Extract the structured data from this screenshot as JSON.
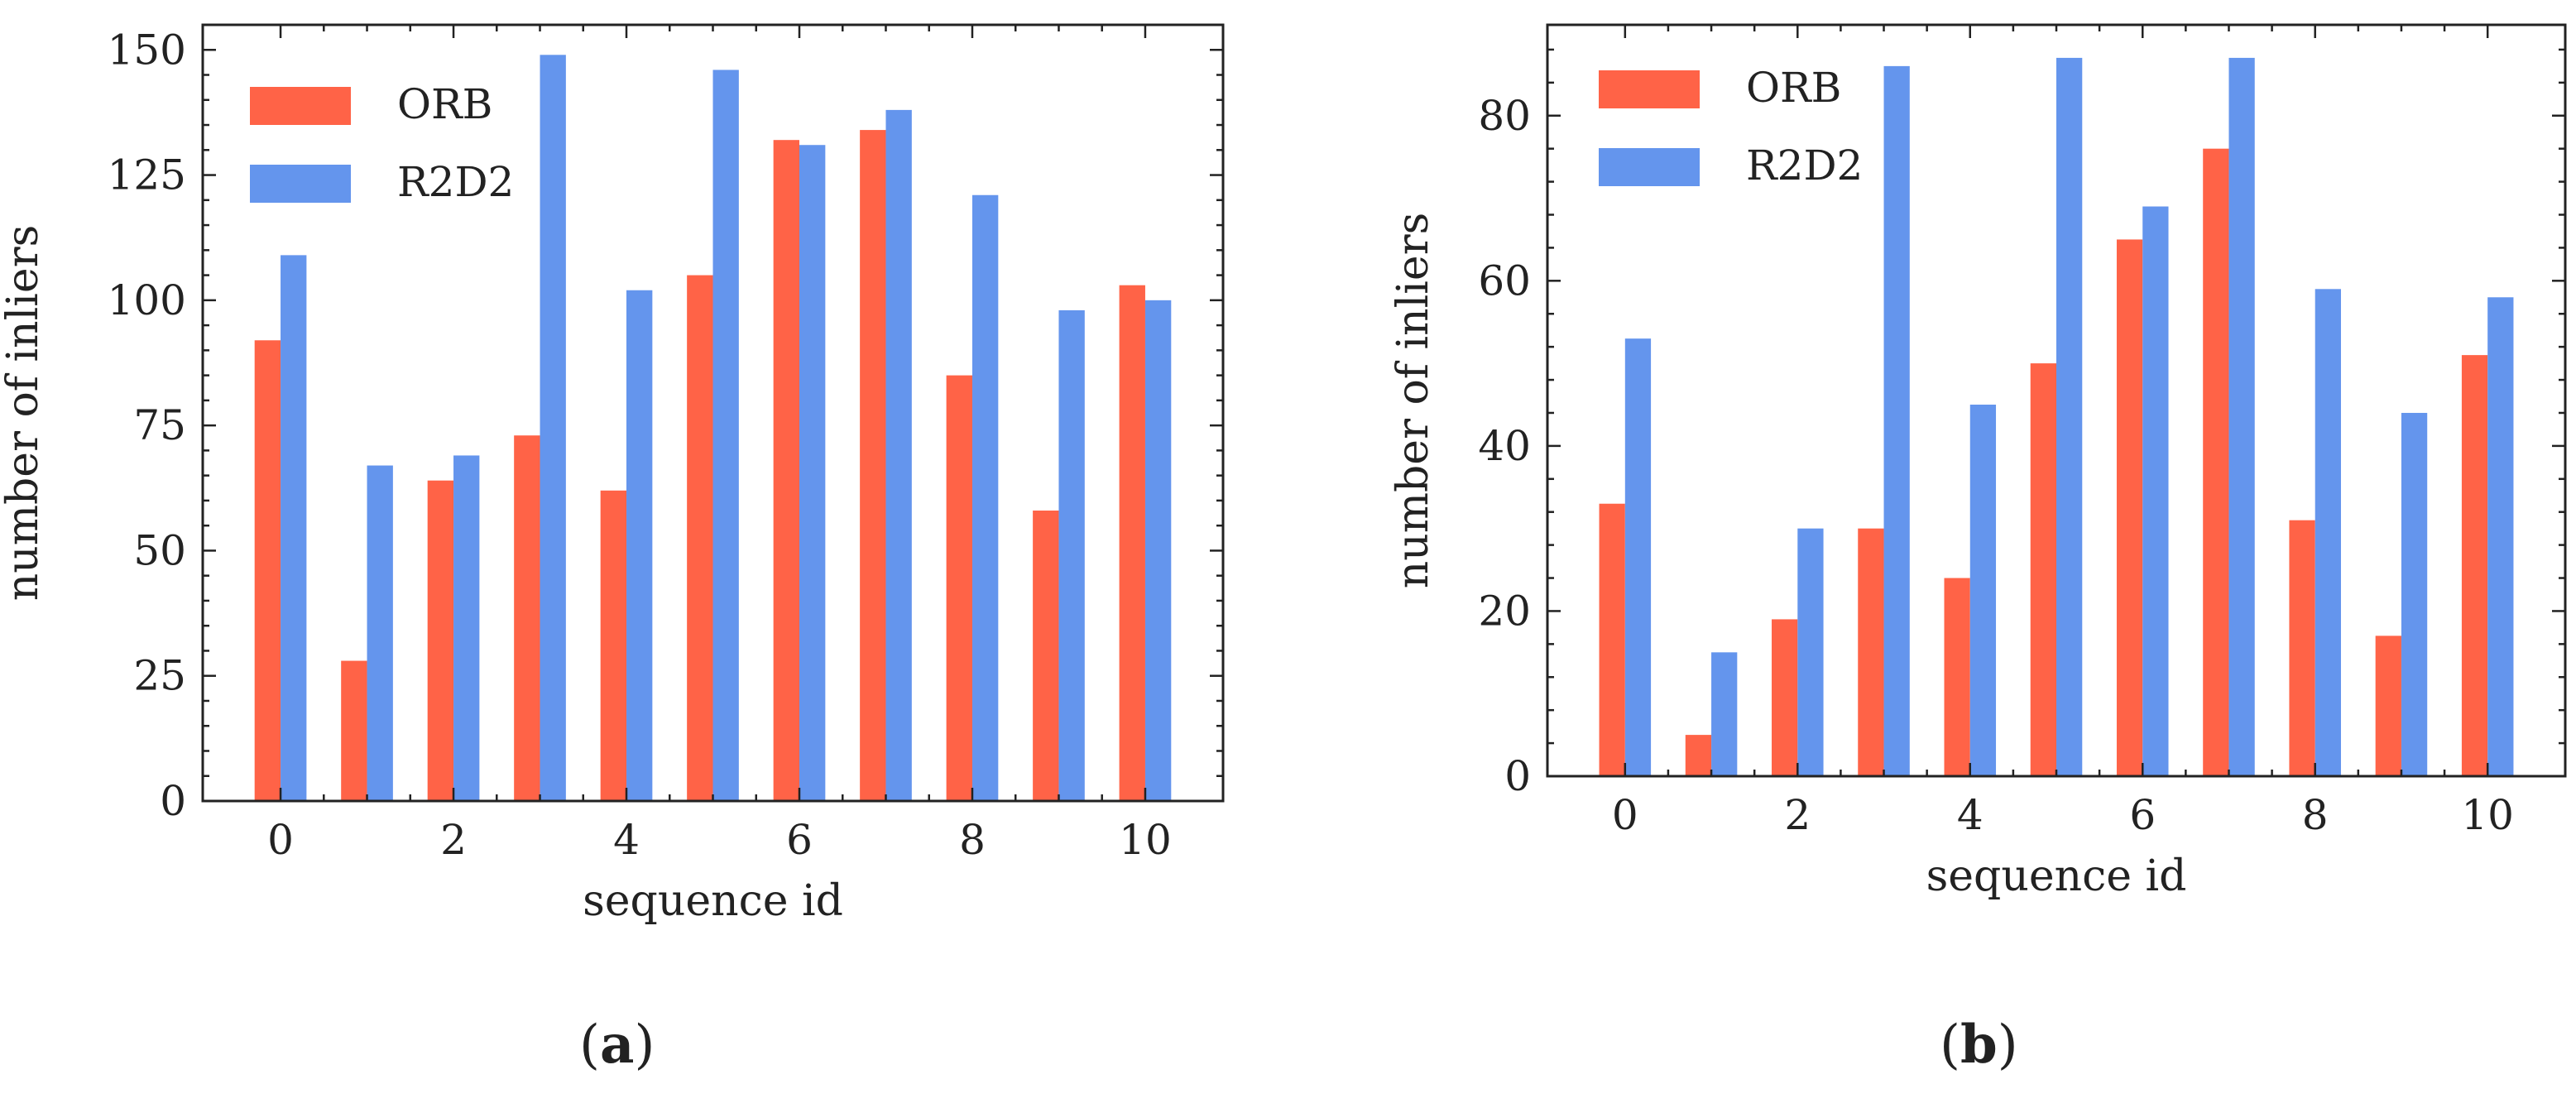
{
  "chart_data": [
    {
      "type": "bar",
      "panel_label": "a",
      "title": "",
      "xlabel": "sequence id",
      "ylabel": "number of inliers",
      "x": [
        0,
        1,
        2,
        3,
        4,
        5,
        6,
        7,
        8,
        9,
        10
      ],
      "xticks": [
        "0",
        "2",
        "4",
        "6",
        "8",
        "10"
      ],
      "yticks": [
        "0",
        "25",
        "50",
        "75",
        "100",
        "125",
        "150"
      ],
      "ylim": [
        0,
        155
      ],
      "legend_position": "top-left",
      "series": [
        {
          "name": "ORB",
          "color": "#ff6347",
          "values": [
            92,
            28,
            64,
            73,
            62,
            105,
            132,
            134,
            85,
            58,
            103
          ]
        },
        {
          "name": "R2D2",
          "color": "#6495ed",
          "values": [
            109,
            67,
            69,
            149,
            102,
            146,
            131,
            138,
            121,
            98,
            100
          ]
        }
      ]
    },
    {
      "type": "bar",
      "panel_label": "b",
      "title": "",
      "xlabel": "sequence id",
      "ylabel": "number of inliers",
      "x": [
        0,
        1,
        2,
        3,
        4,
        5,
        6,
        7,
        8,
        9,
        10
      ],
      "xticks": [
        "0",
        "2",
        "4",
        "6",
        "8",
        "10"
      ],
      "yticks": [
        "0",
        "20",
        "40",
        "60",
        "80"
      ],
      "ylim": [
        0,
        91
      ],
      "legend_position": "top-left",
      "series": [
        {
          "name": "ORB",
          "color": "#ff6347",
          "values": [
            33,
            5,
            19,
            30,
            24,
            50,
            65,
            76,
            31,
            17,
            51
          ]
        },
        {
          "name": "R2D2",
          "color": "#6495ed",
          "values": [
            53,
            15,
            30,
            86,
            45,
            87,
            69,
            87,
            59,
            44,
            58
          ]
        }
      ]
    }
  ]
}
